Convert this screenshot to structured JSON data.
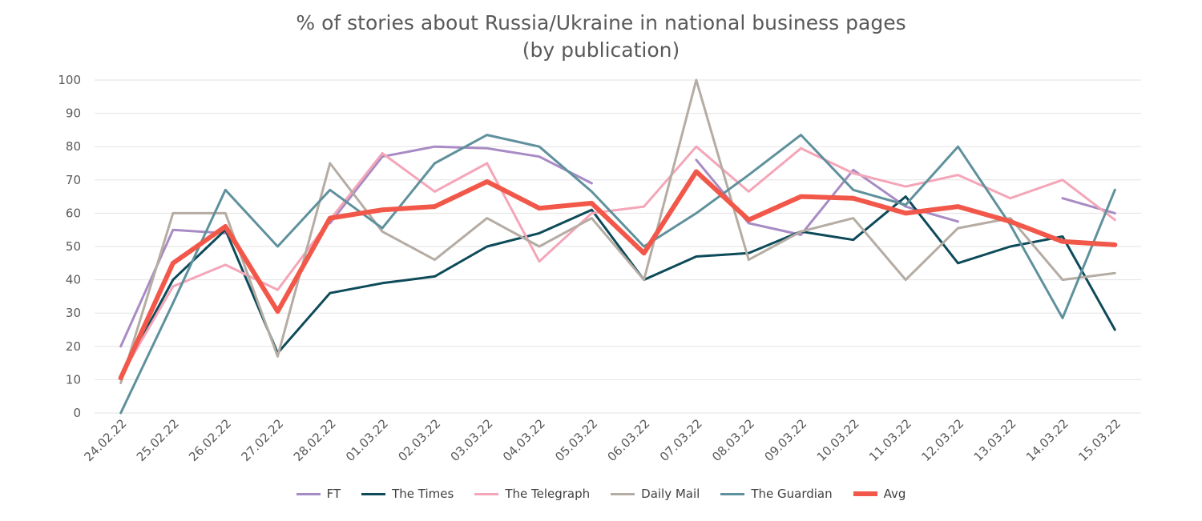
{
  "chart_data": {
    "type": "line",
    "title": "% of stories about Russia/Ukraine in national business pages",
    "subtitle": "(by publication)",
    "xlabel": "",
    "ylabel": "",
    "ylim": [
      0,
      100
    ],
    "yticks": [
      "0",
      "10",
      "20",
      "30",
      "40",
      "50",
      "60",
      "70",
      "80",
      "90",
      "100"
    ],
    "grid": true,
    "legend_position": "bottom",
    "categories": [
      "24.02.22",
      "25.02.22",
      "26.02.22",
      "27.02.22",
      "28.02.22",
      "01.03.22",
      "02.03.22",
      "03.03.22",
      "04.03.22",
      "05.03.22",
      "06.03.22",
      "07.03.22",
      "08.03.22",
      "09.03.22",
      "10.03.22",
      "11.03.22",
      "12.03.22",
      "13.03.22",
      "14.03.22",
      "15.03.22"
    ],
    "series": [
      {
        "name": "FT",
        "color": "#a88bc4",
        "width": 3,
        "values": [
          20,
          55,
          54,
          null,
          57,
          77,
          80,
          79.5,
          77,
          69,
          null,
          76,
          57,
          53.5,
          73,
          62,
          57.5,
          null,
          64.5,
          60
        ]
      },
      {
        "name": "The Times",
        "color": "#0e4b5a",
        "width": 3,
        "values": [
          11,
          40,
          55,
          18,
          36,
          39,
          41,
          50,
          54,
          61,
          40,
          47,
          48,
          54.5,
          52,
          65,
          45,
          50,
          53,
          25
        ]
      },
      {
        "name": "The Telegraph",
        "color": "#f4a6b8",
        "width": 3,
        "values": [
          11,
          38,
          44.5,
          37,
          58,
          78,
          66.5,
          75,
          45.5,
          60,
          62,
          80,
          66.5,
          79.5,
          72,
          68,
          71.5,
          64.5,
          70,
          58
        ]
      },
      {
        "name": "Daily Mail",
        "color": "#b5aca3",
        "width": 3,
        "values": [
          9,
          60,
          60,
          17,
          75,
          54.5,
          46,
          58.5,
          50,
          58.5,
          40,
          100,
          46,
          54.5,
          58.5,
          40,
          55.5,
          58.5,
          40,
          42
        ]
      },
      {
        "name": "The Guardian",
        "color": "#5f919c",
        "width": 3,
        "values": [
          0,
          33,
          67,
          50,
          67,
          55.5,
          75,
          83.5,
          80,
          66.5,
          50,
          60,
          71.5,
          83.5,
          67,
          62.5,
          80,
          56.5,
          28.5,
          67
        ]
      },
      {
        "name": "Avg",
        "color": "#f2584a",
        "width": 6,
        "values": [
          10.5,
          45,
          56,
          30.5,
          58.5,
          61,
          62,
          69.5,
          61.5,
          63,
          48,
          72.5,
          58,
          65,
          64.5,
          60,
          62,
          57.5,
          51.5,
          50.5
        ]
      }
    ]
  }
}
